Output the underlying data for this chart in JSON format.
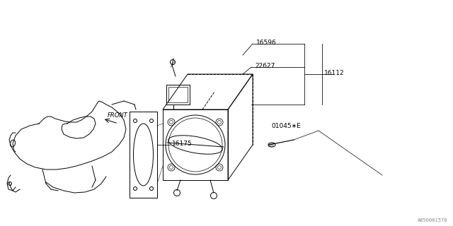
{
  "bg_color": "#ffffff",
  "line_color": "#000000",
  "gray_color": "#888888",
  "watermark": "A050001570",
  "figsize": [
    6.4,
    3.2
  ],
  "dpi": 100,
  "lw": 0.7
}
